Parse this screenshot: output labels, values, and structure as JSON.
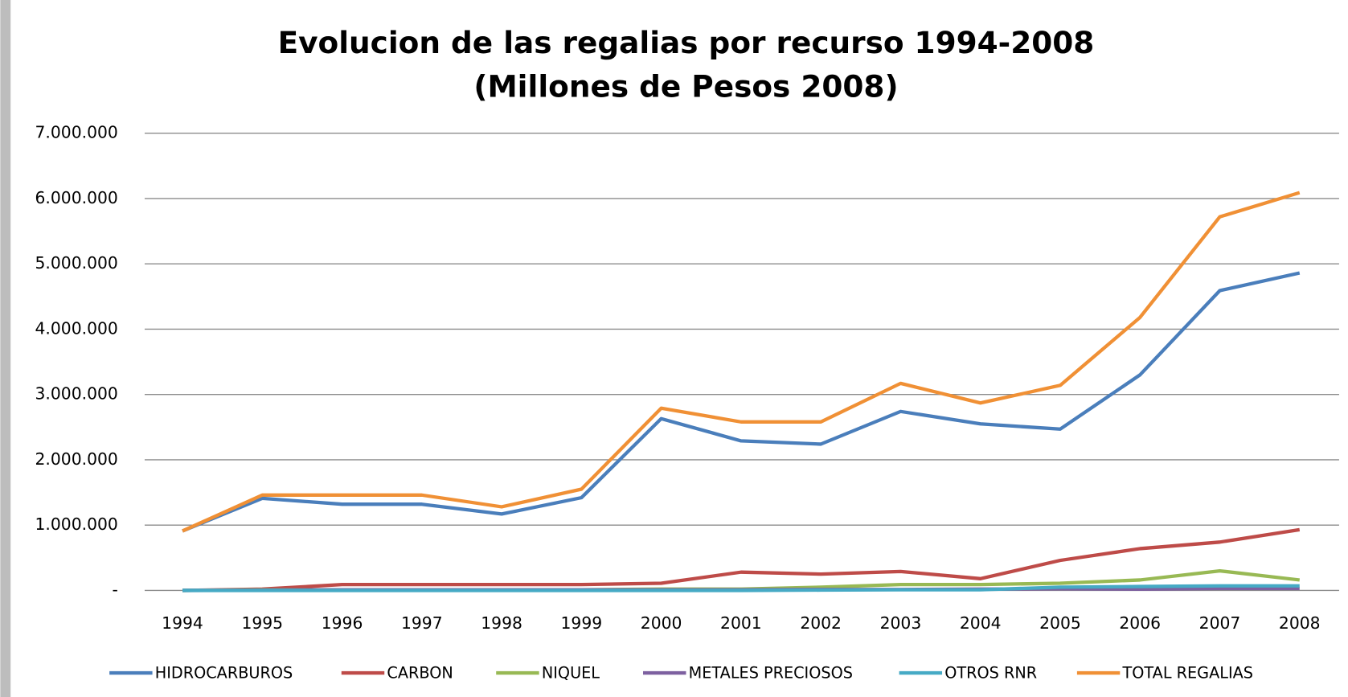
{
  "chart_data": {
    "type": "line",
    "title": "Evolucion de las regalias por recurso 1994-2008",
    "subtitle": "(Millones de Pesos 2008)",
    "categories": [
      "1994",
      "1995",
      "1996",
      "1997",
      "1998",
      "1999",
      "2000",
      "2001",
      "2002",
      "2003",
      "2004",
      "2005",
      "2006",
      "2007",
      "2008"
    ],
    "series": [
      {
        "name": "HIDROCARBUROS",
        "color": "#4a7ebb",
        "values": [
          910000,
          1410000,
          1320000,
          1320000,
          1170000,
          1420000,
          2630000,
          2290000,
          2240000,
          2740000,
          2550000,
          2470000,
          3300000,
          4590000,
          4860000
        ]
      },
      {
        "name": "CARBON",
        "color": "#be4b48",
        "values": [
          0,
          20000,
          90000,
          90000,
          90000,
          90000,
          110000,
          280000,
          250000,
          290000,
          180000,
          460000,
          640000,
          740000,
          930000
        ]
      },
      {
        "name": "NIQUEL",
        "color": "#98b954",
        "values": [
          0,
          10000,
          10000,
          10000,
          10000,
          10000,
          20000,
          20000,
          50000,
          90000,
          90000,
          110000,
          160000,
          300000,
          160000
        ]
      },
      {
        "name": "METALES PRECIOSOS",
        "color": "#7d60a0",
        "values": [
          0,
          5000,
          10000,
          10000,
          10000,
          10000,
          10000,
          10000,
          15000,
          15000,
          20000,
          25000,
          20000,
          30000,
          30000
        ]
      },
      {
        "name": "OTROS RNR",
        "color": "#46aac5",
        "values": [
          0,
          0,
          0,
          0,
          0,
          0,
          0,
          0,
          5000,
          10000,
          10000,
          50000,
          60000,
          70000,
          70000
        ]
      },
      {
        "name": "TOTAL REGALIAS",
        "color": "#f09035",
        "values": [
          910000,
          1460000,
          1460000,
          1460000,
          1280000,
          1550000,
          2790000,
          2580000,
          2580000,
          3170000,
          2870000,
          3140000,
          4180000,
          5720000,
          6090000
        ]
      }
    ],
    "ylim": [
      0,
      7000000
    ],
    "yticks": [
      {
        "value": 0,
        "label": "-"
      },
      {
        "value": 1000000,
        "label": "1.000.000"
      },
      {
        "value": 2000000,
        "label": "2.000.000"
      },
      {
        "value": 3000000,
        "label": "3.000.000"
      },
      {
        "value": 4000000,
        "label": "4.000.000"
      },
      {
        "value": 5000000,
        "label": "5.000.000"
      },
      {
        "value": 6000000,
        "label": "6.000.000"
      },
      {
        "value": 7000000,
        "label": "7.000.000"
      }
    ],
    "grid": true,
    "legend": "bottom"
  }
}
